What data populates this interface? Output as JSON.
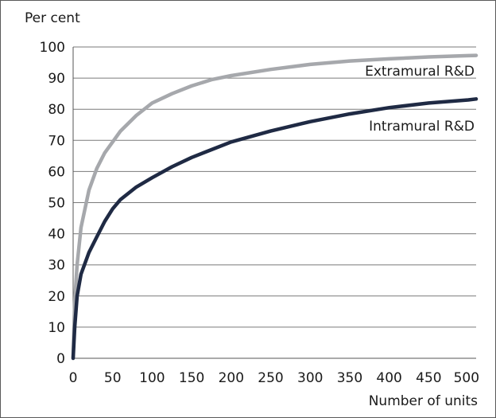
{
  "chart_data": {
    "type": "line",
    "title": "",
    "ylabel": "Per cent",
    "xlabel": "Number of units",
    "xlim": [
      0,
      510
    ],
    "ylim": [
      0,
      100
    ],
    "x_ticks": [
      0,
      50,
      100,
      150,
      200,
      250,
      300,
      350,
      400,
      450,
      500
    ],
    "x_tick_labels": [
      "0",
      "50",
      "100",
      "150",
      "200",
      "250",
      "300",
      "350",
      "400",
      "450",
      "500"
    ],
    "y_ticks": [
      0,
      10,
      20,
      30,
      40,
      50,
      60,
      70,
      80,
      90,
      100
    ],
    "y_tick_labels": [
      "0",
      "10",
      "20",
      "30",
      "40",
      "50",
      "60",
      "70",
      "80",
      "90",
      "100"
    ],
    "grid": "horizontal",
    "series": [
      {
        "name": "Extramural R&D",
        "color": "#a6a8ac",
        "x": [
          0,
          2,
          5,
          10,
          20,
          30,
          40,
          50,
          60,
          80,
          100,
          125,
          150,
          175,
          200,
          250,
          300,
          350,
          400,
          450,
          500,
          510
        ],
        "y": [
          0,
          18,
          30,
          42,
          54,
          61,
          66,
          69.5,
          73,
          78,
          82,
          85,
          87.5,
          89.5,
          90.8,
          92.8,
          94.4,
          95.5,
          96.2,
          96.8,
          97.2,
          97.3
        ]
      },
      {
        "name": "Intramural R&D",
        "color": "#1f2a44",
        "x": [
          0,
          2,
          5,
          10,
          20,
          30,
          40,
          50,
          60,
          80,
          100,
          125,
          150,
          175,
          200,
          250,
          300,
          350,
          400,
          450,
          500,
          510
        ],
        "y": [
          0,
          10,
          20,
          27,
          34,
          39,
          44,
          48,
          51,
          55,
          58,
          61.5,
          64.5,
          67,
          69.5,
          73,
          76,
          78.5,
          80.5,
          82,
          83,
          83.3
        ]
      }
    ]
  }
}
